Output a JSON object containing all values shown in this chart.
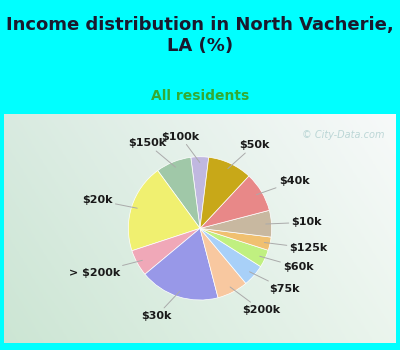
{
  "title": "Income distribution in North Vacherie,\nLA (%)",
  "subtitle": "All residents",
  "bg_color": "#00FFFF",
  "watermark": "© City-Data.com",
  "labels": [
    "$100k",
    "$150k",
    "$20k",
    "> $200k",
    "$30k",
    "$200k",
    "$75k",
    "$60k",
    "$125k",
    "$10k",
    "$40k",
    "$50k"
  ],
  "values": [
    4,
    8,
    20,
    6,
    18,
    7,
    5,
    4,
    3,
    6,
    9,
    10
  ],
  "colors": [
    "#c0b8e0",
    "#a0c8a8",
    "#f0f070",
    "#f0a8b8",
    "#9898e8",
    "#f8c8a0",
    "#a8d0f8",
    "#c0f080",
    "#f0c070",
    "#c8b8a0",
    "#e88888",
    "#c8a818"
  ],
  "label_fontsize": 8,
  "title_fontsize": 13,
  "subtitle_fontsize": 10,
  "subtitle_color": "#33aa33",
  "startangle": 83,
  "title_color": "#1a1a2e"
}
